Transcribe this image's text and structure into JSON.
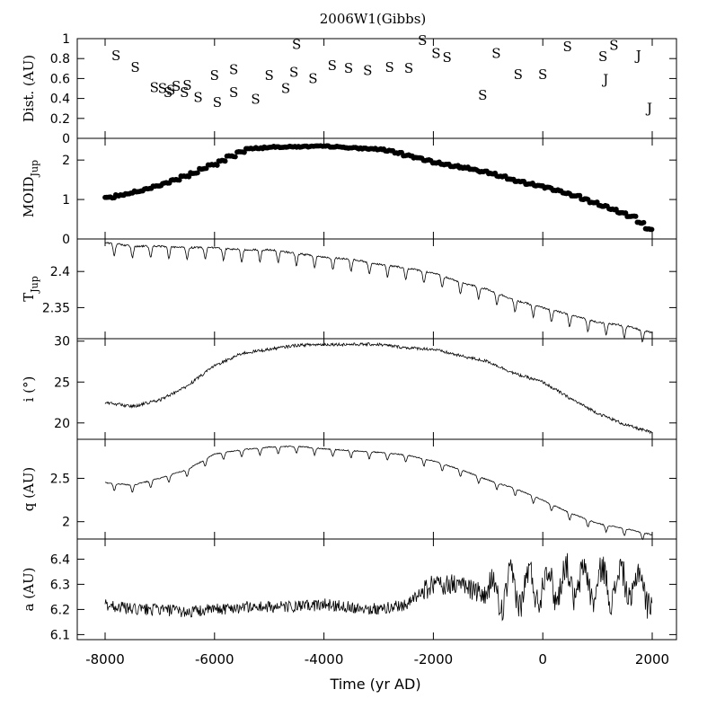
{
  "chart_data": {
    "title": "2006W1(Gibbs)",
    "xlabel": "Time (yr AD)",
    "xlim": [
      -8000,
      2000
    ],
    "xticks": [
      -8000,
      -6000,
      -4000,
      -2000,
      0,
      2000
    ],
    "type": "scatter",
    "panels": [
      {
        "id": "dist",
        "ylabel": "Dist. (AU)",
        "type": "scatter",
        "ylim": [
          0,
          1
        ],
        "yticks": [
          {
            "v": 0,
            "t": "0"
          },
          {
            "v": 0.2,
            "t": "0.2"
          },
          {
            "v": 0.4,
            "t": "0.4"
          },
          {
            "v": 0.6,
            "t": "0.6"
          },
          {
            "v": 0.8,
            "t": "0.8"
          },
          {
            "v": 1,
            "t": "1"
          }
        ],
        "points": [
          {
            "x": -7800,
            "y": 0.84,
            "label": "S"
          },
          {
            "x": -7450,
            "y": 0.72,
            "label": "S"
          },
          {
            "x": -7100,
            "y": 0.52,
            "label": "S"
          },
          {
            "x": -6950,
            "y": 0.51,
            "label": "S"
          },
          {
            "x": -6850,
            "y": 0.47,
            "label": "S"
          },
          {
            "x": -6800,
            "y": 0.49,
            "label": "S"
          },
          {
            "x": -6700,
            "y": 0.53,
            "label": "S"
          },
          {
            "x": -6550,
            "y": 0.47,
            "label": "S"
          },
          {
            "x": -6500,
            "y": 0.54,
            "label": "S"
          },
          {
            "x": -6300,
            "y": 0.42,
            "label": "S"
          },
          {
            "x": -6000,
            "y": 0.64,
            "label": "S"
          },
          {
            "x": -5950,
            "y": 0.37,
            "label": "S"
          },
          {
            "x": -5650,
            "y": 0.7,
            "label": "S"
          },
          {
            "x": -5650,
            "y": 0.47,
            "label": "S"
          },
          {
            "x": -5250,
            "y": 0.4,
            "label": "S"
          },
          {
            "x": -5000,
            "y": 0.64,
            "label": "S"
          },
          {
            "x": -4700,
            "y": 0.51,
            "label": "S"
          },
          {
            "x": -4500,
            "y": 0.95,
            "label": "S"
          },
          {
            "x": -4550,
            "y": 0.67,
            "label": "S"
          },
          {
            "x": -4200,
            "y": 0.61,
            "label": "S"
          },
          {
            "x": -3850,
            "y": 0.74,
            "label": "S"
          },
          {
            "x": -3550,
            "y": 0.71,
            "label": "S"
          },
          {
            "x": -3200,
            "y": 0.69,
            "label": "S"
          },
          {
            "x": -2800,
            "y": 0.72,
            "label": "S"
          },
          {
            "x": -2450,
            "y": 0.71,
            "label": "S"
          },
          {
            "x": -2200,
            "y": 0.99,
            "label": "S"
          },
          {
            "x": -1950,
            "y": 0.86,
            "label": "S"
          },
          {
            "x": -1750,
            "y": 0.82,
            "label": "S"
          },
          {
            "x": -1100,
            "y": 0.44,
            "label": "S"
          },
          {
            "x": -850,
            "y": 0.86,
            "label": "S"
          },
          {
            "x": -450,
            "y": 0.65,
            "label": "S"
          },
          {
            "x": 0,
            "y": 0.65,
            "label": "S"
          },
          {
            "x": 450,
            "y": 0.93,
            "label": "S"
          },
          {
            "x": 1100,
            "y": 0.83,
            "label": "S"
          },
          {
            "x": 1300,
            "y": 0.94,
            "label": "S"
          },
          {
            "x": 1150,
            "y": 0.6,
            "label": "J"
          },
          {
            "x": 1750,
            "y": 0.84,
            "label": "J"
          },
          {
            "x": 1950,
            "y": 0.31,
            "label": "J"
          }
        ]
      },
      {
        "id": "moid",
        "ylabel": "MOID",
        "ylabel_sub": "Jup",
        "type": "scatter",
        "ylim": [
          0,
          2.55
        ],
        "yticks": [
          {
            "v": 0,
            "t": "0"
          },
          {
            "v": 1,
            "t": "1"
          },
          {
            "v": 2,
            "t": "2"
          }
        ],
        "x": [
          -8000,
          -7500,
          -7000,
          -6500,
          -6000,
          -5500,
          -5000,
          -4500,
          -4000,
          -3500,
          -3000,
          -2500,
          -2000,
          -1500,
          -1000,
          -500,
          0,
          500,
          1000,
          1500,
          2000
        ],
        "values": [
          1.05,
          1.2,
          1.4,
          1.65,
          1.95,
          2.28,
          2.33,
          2.34,
          2.35,
          2.3,
          2.27,
          2.1,
          1.92,
          1.8,
          1.65,
          1.45,
          1.3,
          1.1,
          0.85,
          0.6,
          0.13
        ]
      },
      {
        "id": "tjup",
        "ylabel": "T",
        "ylabel_sub": "Jup",
        "type": "line",
        "ylim": [
          2.307,
          2.445
        ],
        "yticks": [
          {
            "v": 2.35,
            "t": "2.35"
          },
          {
            "v": 2.4,
            "t": "2.4"
          }
        ],
        "x": [
          -8000,
          -7500,
          -7000,
          -6500,
          -6000,
          -5500,
          -5000,
          -4500,
          -4000,
          -3500,
          -3000,
          -2500,
          -2000,
          -1500,
          -1000,
          -500,
          0,
          500,
          1000,
          1500,
          2000
        ],
        "values": [
          2.44,
          2.435,
          2.435,
          2.433,
          2.433,
          2.43,
          2.43,
          2.425,
          2.42,
          2.417,
          2.41,
          2.405,
          2.398,
          2.385,
          2.375,
          2.36,
          2.35,
          2.34,
          2.33,
          2.325,
          2.315
        ]
      },
      {
        "id": "incl",
        "ylabel": "i (°)",
        "type": "line",
        "ylim": [
          18,
          30.3
        ],
        "yticks": [
          {
            "v": 20,
            "t": "20"
          },
          {
            "v": 25,
            "t": "25"
          },
          {
            "v": 30,
            "t": "30"
          }
        ],
        "x": [
          -8000,
          -7500,
          -7000,
          -6500,
          -6000,
          -5500,
          -5000,
          -4500,
          -4000,
          -3500,
          -3000,
          -2500,
          -2000,
          -1500,
          -1000,
          -500,
          0,
          500,
          1000,
          1500,
          2000
        ],
        "values": [
          22.5,
          22,
          22.8,
          24.5,
          27,
          28.5,
          29,
          29.5,
          29.6,
          29.6,
          29.6,
          29.2,
          29,
          28.2,
          27.5,
          26,
          25,
          23,
          21.2,
          19.8,
          18.8
        ]
      },
      {
        "id": "q",
        "ylabel": "q (AU)",
        "type": "line",
        "ylim": [
          1.8,
          2.95
        ],
        "yticks": [
          {
            "v": 2,
            "t": "2"
          },
          {
            "v": 2.5,
            "t": "2.5"
          }
        ],
        "x": [
          -8000,
          -7500,
          -7000,
          -6500,
          -6000,
          -5500,
          -5000,
          -4500,
          -4000,
          -3500,
          -3000,
          -2500,
          -2000,
          -1500,
          -1000,
          -500,
          0,
          500,
          1000,
          1500,
          2000
        ],
        "values": [
          2.45,
          2.42,
          2.5,
          2.6,
          2.78,
          2.83,
          2.86,
          2.87,
          2.84,
          2.82,
          2.8,
          2.77,
          2.7,
          2.6,
          2.48,
          2.38,
          2.25,
          2.1,
          1.98,
          1.92,
          1.85
        ]
      },
      {
        "id": "a",
        "ylabel": "a (AU)",
        "type": "line",
        "ylim": [
          6.08,
          6.48
        ],
        "yticks": [
          {
            "v": 6.1,
            "t": "6.1"
          },
          {
            "v": 6.2,
            "t": "6.2"
          },
          {
            "v": 6.3,
            "t": "6.3"
          },
          {
            "v": 6.4,
            "t": "6.4"
          }
        ],
        "x": [
          -8000,
          -7500,
          -7000,
          -6500,
          -6000,
          -5500,
          -5000,
          -4500,
          -4000,
          -3500,
          -3000,
          -2500,
          -2000,
          -1500,
          -1000,
          -500,
          0,
          500,
          1000,
          1500,
          2000
        ],
        "values": [
          6.22,
          6.2,
          6.2,
          6.19,
          6.2,
          6.21,
          6.21,
          6.21,
          6.22,
          6.21,
          6.2,
          6.22,
          6.3,
          6.3,
          6.25,
          6.28,
          6.3,
          6.31,
          6.3,
          6.3,
          6.28
        ]
      }
    ]
  }
}
